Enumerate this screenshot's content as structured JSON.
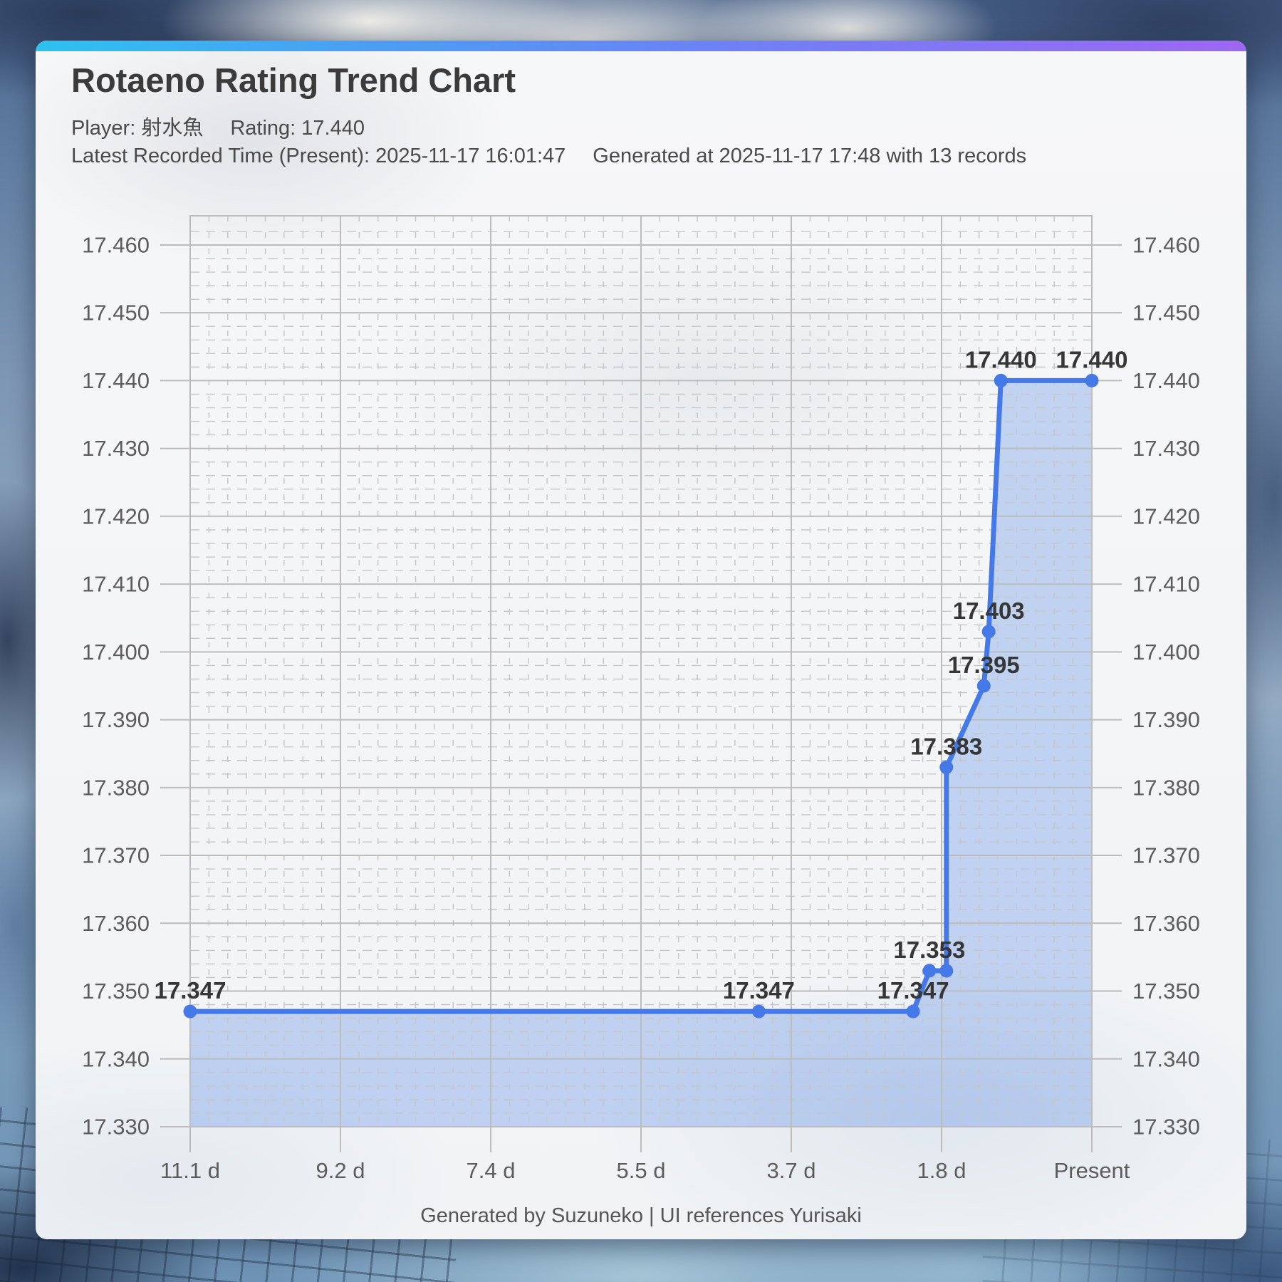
{
  "header": {
    "title": "Rotaeno Rating Trend Chart",
    "player": "Player: 射水魚",
    "rating": "Rating: 17.440",
    "latest_recorded": "Latest Recorded Time (Present): 2025-11-17 16:01:47",
    "generated": "Generated at 2025-11-17 17:48 with 13 records"
  },
  "footer": {
    "credit": "Generated by Suzuneko | UI references Yurisaki"
  },
  "chart_data": {
    "type": "area",
    "title": "Rotaeno Rating Trend Chart",
    "x_axis": {
      "unit": "days before present",
      "tick_labels": [
        "11.1 d",
        "9.2 d",
        "7.4 d",
        "5.5 d",
        "3.7 d",
        "1.8 d",
        "Present"
      ],
      "tick_days": [
        11.1,
        9.25,
        7.4,
        5.55,
        3.7,
        1.85,
        0
      ],
      "range_days": [
        11.1,
        0
      ],
      "minor_divisions_per_major": 8
    },
    "y_axis": {
      "tick_labels": [
        "17.330",
        "17.340",
        "17.350",
        "17.360",
        "17.370",
        "17.380",
        "17.390",
        "17.400",
        "17.410",
        "17.420",
        "17.430",
        "17.440",
        "17.450",
        "17.460"
      ],
      "range": [
        17.33,
        17.46
      ],
      "major_step": 0.01,
      "minor_step": 0.002,
      "sides": "both"
    },
    "points": [
      {
        "days_ago": 11.1,
        "rating": 17.347,
        "label": "17.347"
      },
      {
        "days_ago": 4.1,
        "rating": 17.347,
        "label": "17.347"
      },
      {
        "days_ago": 2.2,
        "rating": 17.347,
        "label": "17.347"
      },
      {
        "days_ago": 2.0,
        "rating": 17.353,
        "label": "17.353"
      },
      {
        "days_ago": 1.79,
        "rating": 17.353,
        "label": ""
      },
      {
        "days_ago": 1.79,
        "rating": 17.383,
        "label": "17.383"
      },
      {
        "days_ago": 1.33,
        "rating": 17.395,
        "label": "17.395"
      },
      {
        "days_ago": 1.27,
        "rating": 17.403,
        "label": "17.403"
      },
      {
        "days_ago": 1.12,
        "rating": 17.44,
        "label": "17.440"
      },
      {
        "days_ago": 0,
        "rating": 17.44,
        "label": "17.440"
      }
    ],
    "records_shown": 13,
    "legend": "none",
    "grid": "major solid + minor dashed",
    "colors": {
      "line": "#4679e8",
      "point": "#4679e8",
      "area_fill": "rgba(77,130,230,0.30)",
      "point_label": "#363636",
      "grid_major": "#bcbcbc",
      "grid_minor": "#c6c6c6",
      "axis_text": "#5c5c5c",
      "accent_gradient": [
        "#2cc2ee",
        "#5f8ef2",
        "#9d68f0"
      ]
    }
  }
}
